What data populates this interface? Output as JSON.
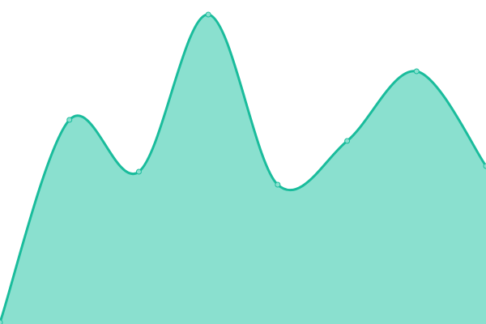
{
  "chart_data": {
    "type": "area",
    "title": "",
    "xlabel": "",
    "ylabel": "",
    "x": [
      0,
      1,
      2,
      3,
      4,
      5,
      6,
      7
    ],
    "values": [
      2,
      252,
      188,
      382,
      172,
      226,
      312,
      195
    ],
    "xlim": [
      0,
      7
    ],
    "ylim": [
      0,
      400
    ],
    "grid": false,
    "axes_visible": false,
    "curve": "smooth",
    "markers": true,
    "colors": {
      "line": "#1abc9c",
      "fill": "#8ae0cf",
      "marker_fill": "#8ae0cf",
      "background": "#ffffff"
    }
  }
}
